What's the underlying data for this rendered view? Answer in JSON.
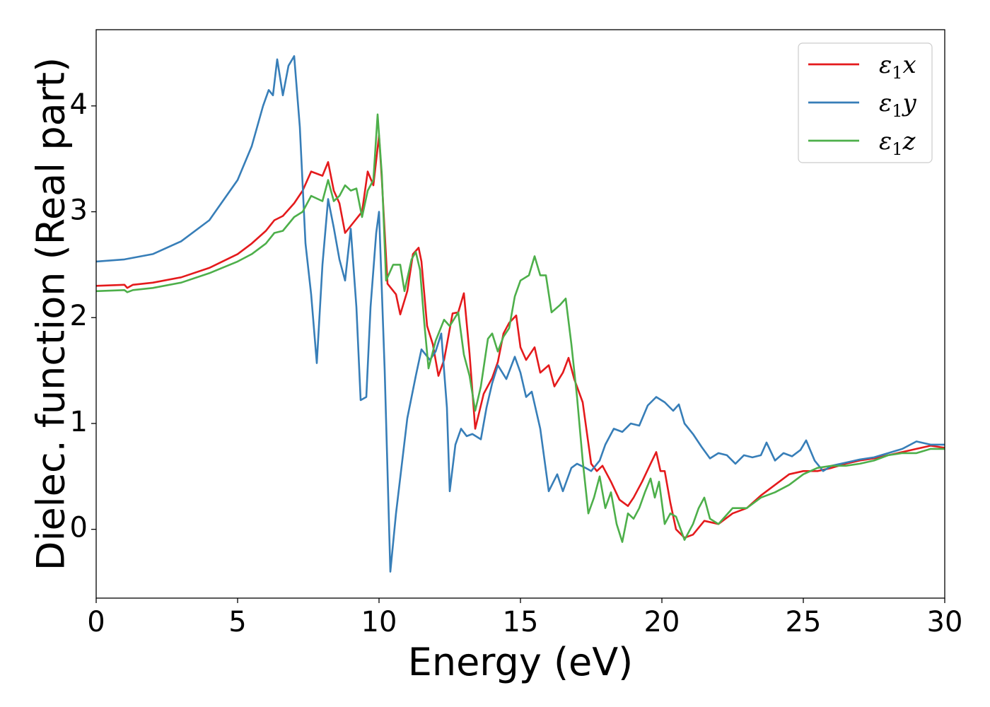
{
  "chart_data": {
    "type": "line",
    "xlabel": "Energy (eV)",
    "ylabel": "Dielec. function (Real part)",
    "xlim": [
      0,
      30
    ],
    "ylim": [
      -0.65,
      4.72
    ],
    "xticks": [
      0,
      5,
      10,
      15,
      20,
      25,
      30
    ],
    "xtick_labels": [
      "0",
      "5",
      "10",
      "15",
      "20",
      "25",
      "30"
    ],
    "yticks": [
      0,
      1,
      2,
      3,
      4
    ],
    "ytick_labels": [
      "0",
      "1",
      "2",
      "3",
      "4"
    ],
    "grid": false,
    "legend_position": "top-right",
    "series": [
      {
        "name": "ε₁x",
        "legend_base": "ε",
        "legend_sub": "1",
        "legend_var": "x",
        "color": "#e41a1c",
        "points": [
          [
            0,
            2.3
          ],
          [
            1,
            2.31
          ],
          [
            1.1,
            2.28
          ],
          [
            1.3,
            2.31
          ],
          [
            2,
            2.33
          ],
          [
            3,
            2.38
          ],
          [
            4,
            2.47
          ],
          [
            5,
            2.6
          ],
          [
            5.5,
            2.7
          ],
          [
            6,
            2.82
          ],
          [
            6.3,
            2.92
          ],
          [
            6.6,
            2.96
          ],
          [
            7,
            3.08
          ],
          [
            7.3,
            3.2
          ],
          [
            7.6,
            3.38
          ],
          [
            8,
            3.34
          ],
          [
            8.2,
            3.47
          ],
          [
            8.4,
            3.2
          ],
          [
            8.6,
            3.08
          ],
          [
            8.8,
            2.8
          ],
          [
            9.1,
            2.9
          ],
          [
            9.4,
            3.0
          ],
          [
            9.6,
            3.38
          ],
          [
            9.8,
            3.25
          ],
          [
            10,
            3.72
          ],
          [
            10.1,
            3.3
          ],
          [
            10.3,
            2.32
          ],
          [
            10.6,
            2.22
          ],
          [
            10.75,
            2.03
          ],
          [
            11,
            2.25
          ],
          [
            11.2,
            2.6
          ],
          [
            11.4,
            2.66
          ],
          [
            11.5,
            2.53
          ],
          [
            11.7,
            1.92
          ],
          [
            11.9,
            1.75
          ],
          [
            12.1,
            1.45
          ],
          [
            12.3,
            1.6
          ],
          [
            12.6,
            2.04
          ],
          [
            12.8,
            2.05
          ],
          [
            13.0,
            2.23
          ],
          [
            13.2,
            1.66
          ],
          [
            13.4,
            0.95
          ],
          [
            13.7,
            1.28
          ],
          [
            14.0,
            1.43
          ],
          [
            14.2,
            1.58
          ],
          [
            14.4,
            1.85
          ],
          [
            14.6,
            1.95
          ],
          [
            14.85,
            2.02
          ],
          [
            15.0,
            1.72
          ],
          [
            15.2,
            1.6
          ],
          [
            15.5,
            1.72
          ],
          [
            15.7,
            1.48
          ],
          [
            16.0,
            1.55
          ],
          [
            16.2,
            1.35
          ],
          [
            16.5,
            1.48
          ],
          [
            16.7,
            1.62
          ],
          [
            16.9,
            1.42
          ],
          [
            17.2,
            1.2
          ],
          [
            17.5,
            0.62
          ],
          [
            17.7,
            0.55
          ],
          [
            17.9,
            0.6
          ],
          [
            18.2,
            0.45
          ],
          [
            18.5,
            0.28
          ],
          [
            18.8,
            0.22
          ],
          [
            19.0,
            0.3
          ],
          [
            19.3,
            0.45
          ],
          [
            19.6,
            0.62
          ],
          [
            19.8,
            0.73
          ],
          [
            19.95,
            0.55
          ],
          [
            20.1,
            0.55
          ],
          [
            20.3,
            0.25
          ],
          [
            20.5,
            0.0
          ],
          [
            20.8,
            -0.08
          ],
          [
            21.1,
            -0.05
          ],
          [
            21.5,
            0.08
          ],
          [
            22.0,
            0.05
          ],
          [
            22.5,
            0.15
          ],
          [
            23.0,
            0.2
          ],
          [
            23.5,
            0.32
          ],
          [
            24.0,
            0.42
          ],
          [
            24.5,
            0.52
          ],
          [
            25.0,
            0.55
          ],
          [
            25.5,
            0.55
          ],
          [
            26.0,
            0.58
          ],
          [
            26.5,
            0.62
          ],
          [
            27.0,
            0.65
          ],
          [
            27.5,
            0.67
          ],
          [
            28.0,
            0.7
          ],
          [
            28.5,
            0.73
          ],
          [
            29.0,
            0.76
          ],
          [
            29.5,
            0.79
          ],
          [
            30.0,
            0.77
          ]
        ]
      },
      {
        "name": "ε₁y",
        "legend_base": "ε",
        "legend_sub": "1",
        "legend_var": "y",
        "color": "#377eb8",
        "points": [
          [
            0,
            2.53
          ],
          [
            1,
            2.55
          ],
          [
            2,
            2.6
          ],
          [
            3,
            2.72
          ],
          [
            4,
            2.92
          ],
          [
            5,
            3.3
          ],
          [
            5.5,
            3.62
          ],
          [
            5.9,
            4.0
          ],
          [
            6.1,
            4.15
          ],
          [
            6.25,
            4.1
          ],
          [
            6.4,
            4.44
          ],
          [
            6.6,
            4.1
          ],
          [
            6.8,
            4.38
          ],
          [
            7.0,
            4.47
          ],
          [
            7.2,
            3.8
          ],
          [
            7.4,
            2.7
          ],
          [
            7.6,
            2.22
          ],
          [
            7.8,
            1.57
          ],
          [
            8.0,
            2.5
          ],
          [
            8.2,
            3.12
          ],
          [
            8.4,
            2.85
          ],
          [
            8.6,
            2.55
          ],
          [
            8.8,
            2.35
          ],
          [
            9.0,
            2.84
          ],
          [
            9.2,
            2.1
          ],
          [
            9.35,
            1.22
          ],
          [
            9.55,
            1.25
          ],
          [
            9.7,
            2.1
          ],
          [
            9.9,
            2.8
          ],
          [
            10.0,
            3.0
          ],
          [
            10.2,
            1.5
          ],
          [
            10.4,
            -0.4
          ],
          [
            10.6,
            0.15
          ],
          [
            10.8,
            0.6
          ],
          [
            11.0,
            1.05
          ],
          [
            11.3,
            1.45
          ],
          [
            11.5,
            1.7
          ],
          [
            11.8,
            1.6
          ],
          [
            12.0,
            1.68
          ],
          [
            12.2,
            1.85
          ],
          [
            12.4,
            1.15
          ],
          [
            12.5,
            0.36
          ],
          [
            12.7,
            0.8
          ],
          [
            12.9,
            0.95
          ],
          [
            13.1,
            0.88
          ],
          [
            13.3,
            0.9
          ],
          [
            13.6,
            0.85
          ],
          [
            13.8,
            1.15
          ],
          [
            14.0,
            1.38
          ],
          [
            14.2,
            1.55
          ],
          [
            14.5,
            1.42
          ],
          [
            14.8,
            1.63
          ],
          [
            15.0,
            1.48
          ],
          [
            15.2,
            1.25
          ],
          [
            15.4,
            1.3
          ],
          [
            15.7,
            0.95
          ],
          [
            16.0,
            0.36
          ],
          [
            16.3,
            0.52
          ],
          [
            16.5,
            0.36
          ],
          [
            16.8,
            0.58
          ],
          [
            17.0,
            0.62
          ],
          [
            17.3,
            0.58
          ],
          [
            17.5,
            0.55
          ],
          [
            17.8,
            0.65
          ],
          [
            18.0,
            0.8
          ],
          [
            18.3,
            0.95
          ],
          [
            18.6,
            0.92
          ],
          [
            18.9,
            1.0
          ],
          [
            19.2,
            0.98
          ],
          [
            19.5,
            1.17
          ],
          [
            19.8,
            1.25
          ],
          [
            20.1,
            1.2
          ],
          [
            20.4,
            1.12
          ],
          [
            20.6,
            1.18
          ],
          [
            20.8,
            1.0
          ],
          [
            21.1,
            0.9
          ],
          [
            21.4,
            0.78
          ],
          [
            21.7,
            0.67
          ],
          [
            22.0,
            0.72
          ],
          [
            22.3,
            0.7
          ],
          [
            22.6,
            0.62
          ],
          [
            22.9,
            0.7
          ],
          [
            23.2,
            0.68
          ],
          [
            23.5,
            0.7
          ],
          [
            23.7,
            0.82
          ],
          [
            24.0,
            0.65
          ],
          [
            24.3,
            0.72
          ],
          [
            24.6,
            0.69
          ],
          [
            24.9,
            0.75
          ],
          [
            25.1,
            0.84
          ],
          [
            25.4,
            0.65
          ],
          [
            25.7,
            0.55
          ],
          [
            26.0,
            0.6
          ],
          [
            26.5,
            0.63
          ],
          [
            27.0,
            0.66
          ],
          [
            27.5,
            0.68
          ],
          [
            28.0,
            0.72
          ],
          [
            28.5,
            0.76
          ],
          [
            29.0,
            0.83
          ],
          [
            29.5,
            0.8
          ],
          [
            30.0,
            0.8
          ]
        ]
      },
      {
        "name": "ε₁z",
        "legend_base": "ε",
        "legend_sub": "1",
        "legend_var": "z",
        "color": "#4daf4a",
        "points": [
          [
            0,
            2.25
          ],
          [
            1,
            2.26
          ],
          [
            1.1,
            2.24
          ],
          [
            1.3,
            2.26
          ],
          [
            2,
            2.28
          ],
          [
            3,
            2.33
          ],
          [
            4,
            2.42
          ],
          [
            5,
            2.53
          ],
          [
            5.5,
            2.6
          ],
          [
            6,
            2.7
          ],
          [
            6.3,
            2.8
          ],
          [
            6.6,
            2.82
          ],
          [
            7,
            2.95
          ],
          [
            7.3,
            3.0
          ],
          [
            7.6,
            3.15
          ],
          [
            8,
            3.1
          ],
          [
            8.2,
            3.3
          ],
          [
            8.4,
            3.1
          ],
          [
            8.6,
            3.15
          ],
          [
            8.8,
            3.25
          ],
          [
            9.0,
            3.2
          ],
          [
            9.2,
            3.22
          ],
          [
            9.4,
            2.95
          ],
          [
            9.6,
            3.2
          ],
          [
            9.8,
            3.3
          ],
          [
            9.95,
            3.92
          ],
          [
            10.1,
            3.35
          ],
          [
            10.25,
            2.35
          ],
          [
            10.5,
            2.5
          ],
          [
            10.75,
            2.5
          ],
          [
            10.9,
            2.25
          ],
          [
            11.15,
            2.55
          ],
          [
            11.3,
            2.62
          ],
          [
            11.45,
            2.45
          ],
          [
            11.6,
            1.95
          ],
          [
            11.75,
            1.52
          ],
          [
            12.0,
            1.78
          ],
          [
            12.3,
            1.98
          ],
          [
            12.5,
            1.92
          ],
          [
            12.8,
            2.05
          ],
          [
            13.0,
            1.65
          ],
          [
            13.2,
            1.45
          ],
          [
            13.4,
            1.12
          ],
          [
            13.6,
            1.35
          ],
          [
            13.85,
            1.8
          ],
          [
            14.0,
            1.85
          ],
          [
            14.2,
            1.68
          ],
          [
            14.4,
            1.82
          ],
          [
            14.6,
            1.9
          ],
          [
            14.8,
            2.2
          ],
          [
            15.0,
            2.35
          ],
          [
            15.3,
            2.4
          ],
          [
            15.5,
            2.58
          ],
          [
            15.7,
            2.4
          ],
          [
            15.9,
            2.4
          ],
          [
            16.1,
            2.05
          ],
          [
            16.4,
            2.12
          ],
          [
            16.6,
            2.18
          ],
          [
            16.8,
            1.75
          ],
          [
            17.0,
            1.25
          ],
          [
            17.2,
            0.65
          ],
          [
            17.4,
            0.15
          ],
          [
            17.6,
            0.3
          ],
          [
            17.8,
            0.5
          ],
          [
            18.0,
            0.2
          ],
          [
            18.2,
            0.35
          ],
          [
            18.4,
            0.05
          ],
          [
            18.6,
            -0.12
          ],
          [
            18.8,
            0.15
          ],
          [
            19.0,
            0.1
          ],
          [
            19.2,
            0.2
          ],
          [
            19.4,
            0.35
          ],
          [
            19.6,
            0.48
          ],
          [
            19.75,
            0.3
          ],
          [
            19.9,
            0.45
          ],
          [
            20.1,
            0.05
          ],
          [
            20.3,
            0.15
          ],
          [
            20.5,
            0.12
          ],
          [
            20.8,
            -0.1
          ],
          [
            21.1,
            0.05
          ],
          [
            21.3,
            0.2
          ],
          [
            21.5,
            0.3
          ],
          [
            21.7,
            0.1
          ],
          [
            22.0,
            0.05
          ],
          [
            22.5,
            0.2
          ],
          [
            23.0,
            0.2
          ],
          [
            23.5,
            0.3
          ],
          [
            24.0,
            0.35
          ],
          [
            24.5,
            0.42
          ],
          [
            25.0,
            0.52
          ],
          [
            25.5,
            0.58
          ],
          [
            26.0,
            0.6
          ],
          [
            26.5,
            0.6
          ],
          [
            27.0,
            0.62
          ],
          [
            27.5,
            0.65
          ],
          [
            28.0,
            0.7
          ],
          [
            28.5,
            0.72
          ],
          [
            29.0,
            0.72
          ],
          [
            29.5,
            0.76
          ],
          [
            30.0,
            0.76
          ]
        ]
      }
    ]
  }
}
